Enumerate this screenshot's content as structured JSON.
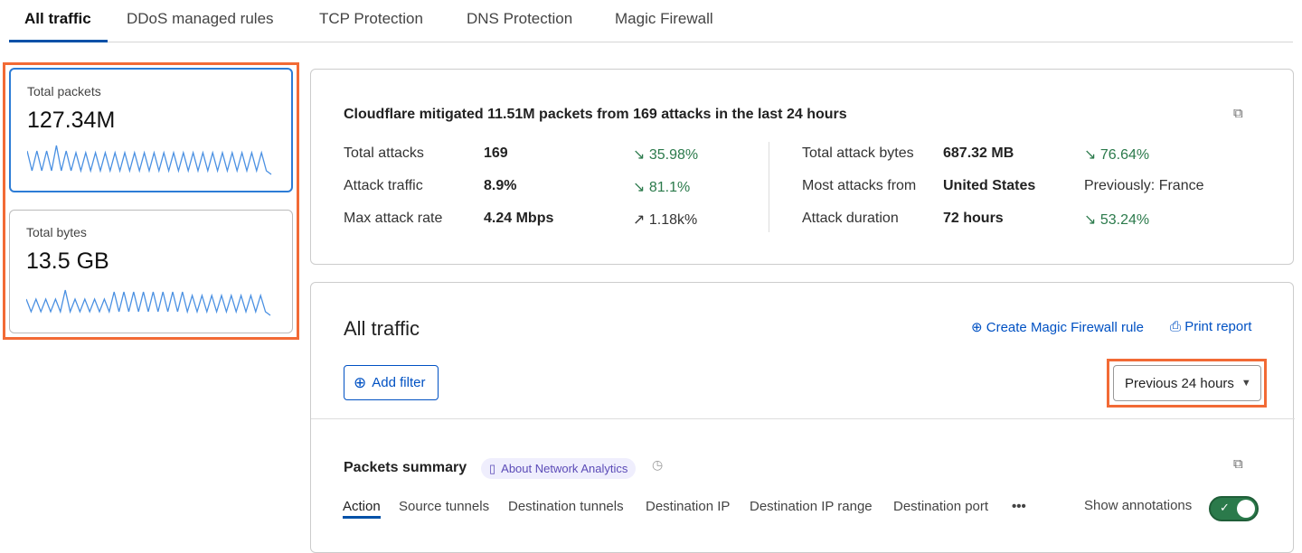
{
  "tabs": [
    "All traffic",
    "DDoS managed rules",
    "TCP Protection",
    "DNS Protection",
    "Magic Firewall"
  ],
  "cards": [
    {
      "label": "Total packets",
      "value": "127.34M"
    },
    {
      "label": "Total bytes",
      "value": "13.5 GB"
    }
  ],
  "summary": {
    "headline": "Cloudflare mitigated 11.51M packets from 169 attacks in the last 24 hours",
    "left": [
      {
        "label": "Total attacks",
        "value": "169",
        "change": "35.98%",
        "dir": "down"
      },
      {
        "label": "Attack traffic",
        "value": "8.9%",
        "change": "81.1%",
        "dir": "down"
      },
      {
        "label": "Max attack rate",
        "value": "4.24 Mbps",
        "change": "1.18k%",
        "dir": "up"
      }
    ],
    "right": [
      {
        "label": "Total attack bytes",
        "value": "687.32 MB",
        "change": "76.64%",
        "dir": "down"
      },
      {
        "label": "Most attacks from",
        "value": "United States",
        "change": "Previously: France",
        "dir": "none"
      },
      {
        "label": "Attack duration",
        "value": "72 hours",
        "change": "53.24%",
        "dir": "down"
      }
    ]
  },
  "main": {
    "title": "All traffic",
    "create_rule": "Create Magic Firewall rule",
    "print": "Print report",
    "add_filter": "Add filter",
    "time_range": "Previous 24 hours",
    "section_title": "Packets summary",
    "about": "About Network Analytics",
    "subtabs": [
      "Action",
      "Source tunnels",
      "Destination tunnels",
      "Destination IP",
      "Destination IP range",
      "Destination port"
    ],
    "annotations_label": "Show annotations",
    "annotations_on": true
  },
  "colors": {
    "accent": "#0051c3",
    "highlight": "#f26a35",
    "positive": "#2b7a4b",
    "toggle": "#2b7a4b"
  }
}
